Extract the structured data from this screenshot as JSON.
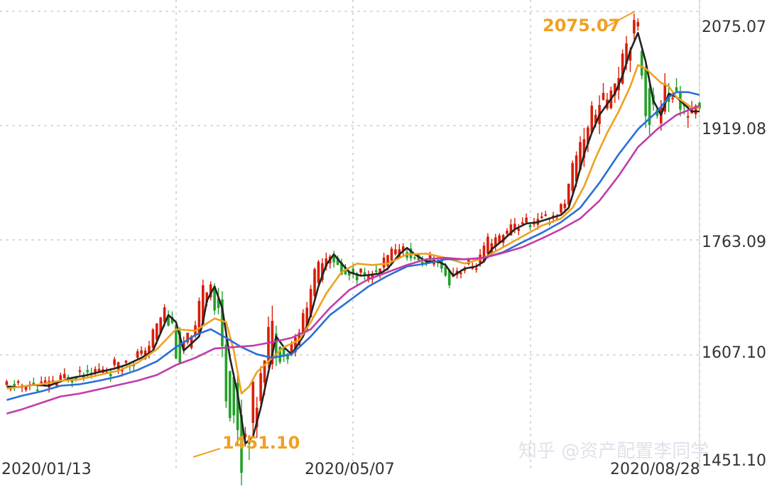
{
  "watermark": "知乎 @资产配置李同学",
  "chart_data": {
    "type": "candlestick",
    "title": "",
    "y_ticks": [
      "2075.07",
      "1919.08",
      "1763.09",
      "1607.10",
      "1451.10"
    ],
    "x_ticks": [
      "2020/01/13",
      "2020/05/07",
      "2020/08/28"
    ],
    "ylim": [
      1451.1,
      2075.07
    ],
    "grid": true,
    "annotations": [
      {
        "label": "2075.07",
        "kind": "high"
      },
      {
        "label": "1451.10",
        "kind": "low"
      }
    ],
    "colors": {
      "up": "#d81e06",
      "down": "#23a02a",
      "ma_black": "#222222",
      "ma_orange": "#f0a020",
      "ma_blue": "#2a6fd6",
      "ma_magenta": "#c23ca8",
      "annotation": "#f0a020"
    },
    "series": [
      {
        "color": "black",
        "values": [
          [
            1,
            1550
          ],
          [
            4,
            1549
          ],
          [
            8,
            1552
          ],
          [
            12,
            1551
          ],
          [
            15,
            1557
          ],
          [
            18,
            1562
          ],
          [
            22,
            1566
          ],
          [
            25,
            1570
          ],
          [
            29,
            1575
          ],
          [
            32,
            1580
          ],
          [
            36,
            1590
          ],
          [
            39,
            1600
          ],
          [
            41,
            1625
          ],
          [
            43,
            1650
          ],
          [
            45,
            1640
          ],
          [
            47,
            1600
          ],
          [
            49,
            1610
          ],
          [
            51,
            1620
          ],
          [
            52,
            1640
          ],
          [
            53,
            1670
          ],
          [
            55,
            1690
          ],
          [
            57,
            1660
          ],
          [
            59,
            1590
          ],
          [
            61,
            1540
          ],
          [
            63,
            1470
          ],
          [
            65,
            1480
          ],
          [
            67,
            1520
          ],
          [
            69,
            1570
          ],
          [
            71,
            1620
          ],
          [
            73,
            1605
          ],
          [
            75,
            1595
          ],
          [
            78,
            1620
          ],
          [
            80,
            1650
          ],
          [
            82,
            1690
          ],
          [
            84,
            1720
          ],
          [
            86,
            1735
          ],
          [
            88,
            1722
          ],
          [
            90,
            1710
          ],
          [
            93,
            1705
          ],
          [
            95,
            1706
          ],
          [
            98,
            1708
          ],
          [
            100,
            1715
          ],
          [
            103,
            1735
          ],
          [
            105,
            1744
          ],
          [
            107,
            1735
          ],
          [
            110,
            1725
          ],
          [
            113,
            1725
          ],
          [
            115,
            1720
          ],
          [
            117,
            1705
          ],
          [
            120,
            1715
          ],
          [
            123,
            1718
          ],
          [
            125,
            1725
          ],
          [
            127,
            1742
          ],
          [
            130,
            1755
          ],
          [
            133,
            1770
          ],
          [
            136,
            1778
          ],
          [
            139,
            1780
          ],
          [
            142,
            1785
          ],
          [
            145,
            1790
          ],
          [
            147,
            1800
          ],
          [
            149,
            1835
          ],
          [
            151,
            1875
          ],
          [
            153,
            1905
          ],
          [
            155,
            1930
          ],
          [
            157,
            1945
          ],
          [
            159,
            1960
          ],
          [
            161,
            1985
          ],
          [
            163,
            2020
          ],
          [
            165,
            2045
          ],
          [
            167,
            2005
          ],
          [
            169,
            1950
          ],
          [
            171,
            1930
          ],
          [
            173,
            1960
          ],
          [
            175,
            1955
          ],
          [
            177,
            1945
          ],
          [
            179,
            1935
          ],
          [
            181,
            1935
          ]
        ]
      },
      {
        "color": "orange",
        "values": [
          [
            1,
            1547
          ],
          [
            5,
            1550
          ],
          [
            10,
            1553
          ],
          [
            15,
            1558
          ],
          [
            20,
            1560
          ],
          [
            25,
            1566
          ],
          [
            30,
            1572
          ],
          [
            35,
            1583
          ],
          [
            40,
            1602
          ],
          [
            45,
            1630
          ],
          [
            50,
            1628
          ],
          [
            55,
            1645
          ],
          [
            58,
            1640
          ],
          [
            60,
            1600
          ],
          [
            62,
            1540
          ],
          [
            64,
            1550
          ],
          [
            66,
            1570
          ],
          [
            70,
            1590
          ],
          [
            73,
            1605
          ],
          [
            77,
            1615
          ],
          [
            80,
            1640
          ],
          [
            84,
            1680
          ],
          [
            88,
            1710
          ],
          [
            92,
            1722
          ],
          [
            96,
            1720
          ],
          [
            100,
            1722
          ],
          [
            105,
            1735
          ],
          [
            110,
            1736
          ],
          [
            115,
            1730
          ],
          [
            120,
            1722
          ],
          [
            125,
            1730
          ],
          [
            130,
            1745
          ],
          [
            135,
            1760
          ],
          [
            140,
            1775
          ],
          [
            145,
            1785
          ],
          [
            148,
            1800
          ],
          [
            151,
            1830
          ],
          [
            154,
            1870
          ],
          [
            157,
            1905
          ],
          [
            160,
            1935
          ],
          [
            163,
            1970
          ],
          [
            165,
            2000
          ],
          [
            167,
            1995
          ],
          [
            169,
            1985
          ],
          [
            171,
            1975
          ],
          [
            173,
            1970
          ],
          [
            175,
            1955
          ],
          [
            177,
            1948
          ],
          [
            179,
            1940
          ],
          [
            181,
            1940
          ]
        ]
      },
      {
        "color": "blue",
        "values": [
          [
            1,
            1531
          ],
          [
            5,
            1537
          ],
          [
            10,
            1543
          ],
          [
            15,
            1551
          ],
          [
            20,
            1553
          ],
          [
            25,
            1558
          ],
          [
            30,
            1564
          ],
          [
            35,
            1573
          ],
          [
            40,
            1585
          ],
          [
            45,
            1605
          ],
          [
            50,
            1622
          ],
          [
            54,
            1630
          ],
          [
            58,
            1618
          ],
          [
            62,
            1605
          ],
          [
            66,
            1595
          ],
          [
            70,
            1590
          ],
          [
            75,
            1595
          ],
          [
            80,
            1620
          ],
          [
            85,
            1650
          ],
          [
            90,
            1670
          ],
          [
            95,
            1690
          ],
          [
            100,
            1705
          ],
          [
            105,
            1718
          ],
          [
            110,
            1722
          ],
          [
            115,
            1728
          ],
          [
            120,
            1728
          ],
          [
            125,
            1730
          ],
          [
            130,
            1738
          ],
          [
            135,
            1752
          ],
          [
            140,
            1765
          ],
          [
            145,
            1780
          ],
          [
            150,
            1800
          ],
          [
            155,
            1835
          ],
          [
            160,
            1875
          ],
          [
            165,
            1910
          ],
          [
            170,
            1935
          ],
          [
            173,
            1955
          ],
          [
            175,
            1962
          ],
          [
            178,
            1962
          ],
          [
            181,
            1958
          ]
        ]
      },
      {
        "color": "magenta",
        "values": [
          [
            1,
            1512
          ],
          [
            5,
            1518
          ],
          [
            10,
            1527
          ],
          [
            15,
            1536
          ],
          [
            20,
            1540
          ],
          [
            25,
            1546
          ],
          [
            30,
            1552
          ],
          [
            35,
            1558
          ],
          [
            40,
            1566
          ],
          [
            45,
            1580
          ],
          [
            50,
            1590
          ],
          [
            55,
            1603
          ],
          [
            60,
            1605
          ],
          [
            65,
            1607
          ],
          [
            70,
            1612
          ],
          [
            75,
            1618
          ],
          [
            80,
            1630
          ],
          [
            85,
            1660
          ],
          [
            90,
            1685
          ],
          [
            95,
            1700
          ],
          [
            100,
            1710
          ],
          [
            105,
            1720
          ],
          [
            110,
            1728
          ],
          [
            115,
            1730
          ],
          [
            120,
            1728
          ],
          [
            125,
            1730
          ],
          [
            130,
            1737
          ],
          [
            135,
            1745
          ],
          [
            140,
            1757
          ],
          [
            145,
            1770
          ],
          [
            150,
            1785
          ],
          [
            155,
            1810
          ],
          [
            160,
            1845
          ],
          [
            165,
            1885
          ],
          [
            170,
            1910
          ],
          [
            175,
            1930
          ],
          [
            181,
            1943
          ]
        ]
      }
    ]
  }
}
